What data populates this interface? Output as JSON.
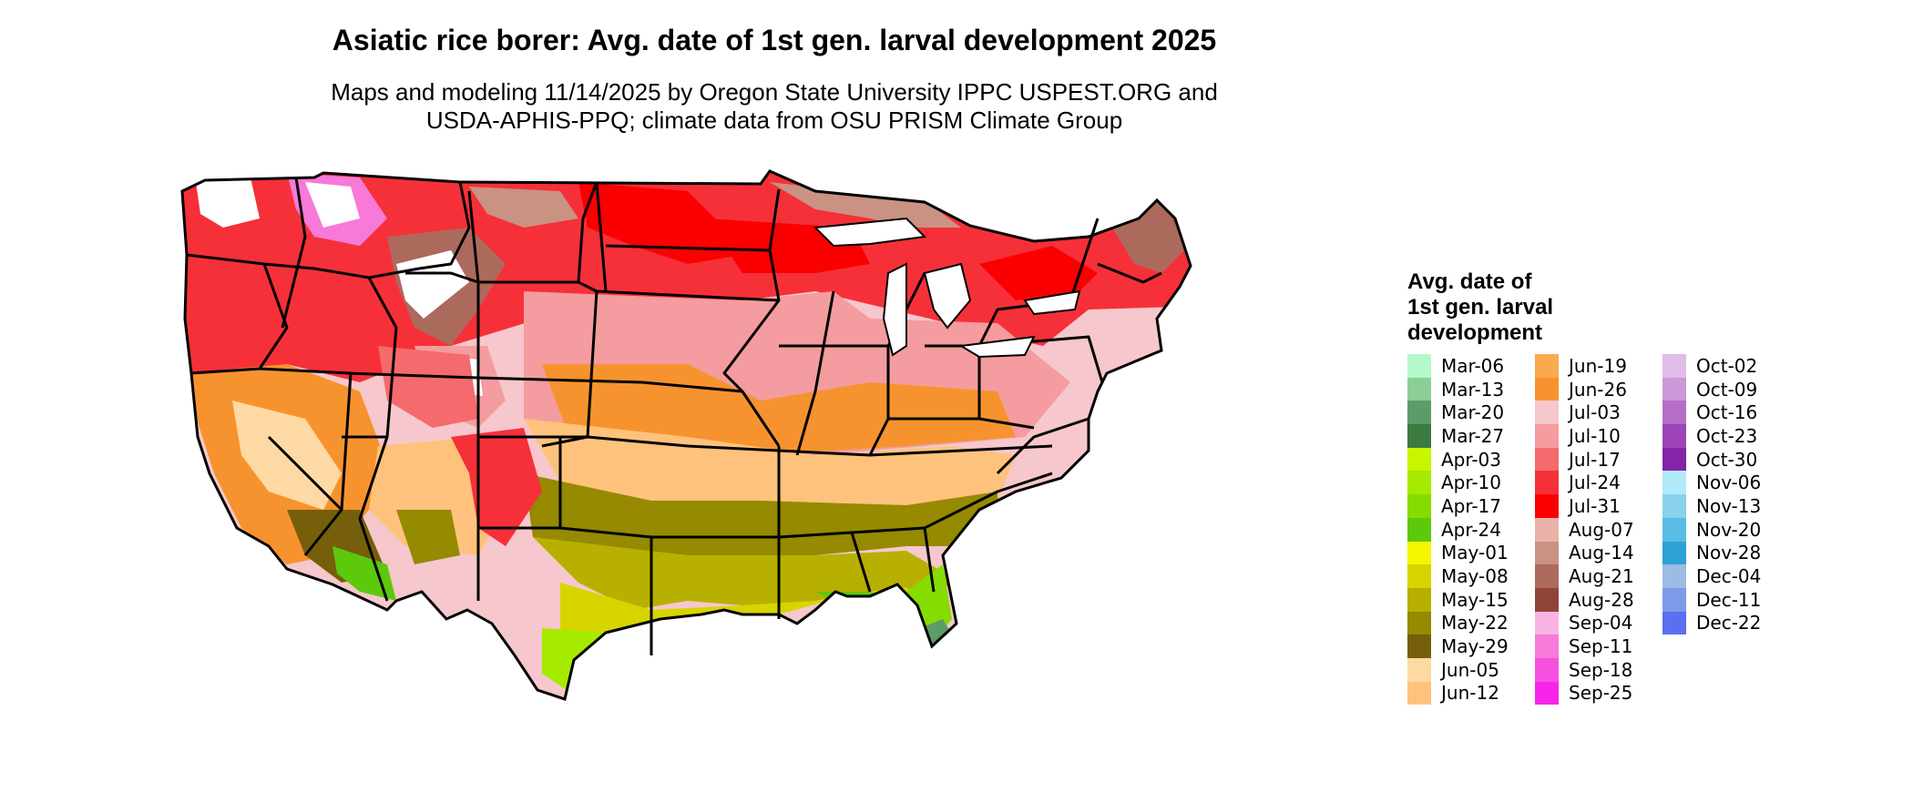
{
  "header": {
    "title": "Asiatic rice borer: Avg. date of 1st gen. larval development 2025",
    "subtitle_line1": "Maps and modeling 11/14/2025 by Oregon State University IPPC USPEST.ORG and",
    "subtitle_line2": "USDA-APHIS-PPQ; climate data from OSU PRISM Climate Group"
  },
  "legend": {
    "title_line1": "Avg. date of",
    "title_line2": "1st gen. larval",
    "title_line3": "development",
    "columns": [
      [
        {
          "label": "Mar-06",
          "color": "#b4f8c9"
        },
        {
          "label": "Mar-13",
          "color": "#8ccf96"
        },
        {
          "label": "Mar-20",
          "color": "#5c9c68"
        },
        {
          "label": "Mar-27",
          "color": "#3b7a41"
        },
        {
          "label": "Apr-03",
          "color": "#c8f500"
        },
        {
          "label": "Apr-10",
          "color": "#a6ea00"
        },
        {
          "label": "Apr-17",
          "color": "#86dc00"
        },
        {
          "label": "Apr-24",
          "color": "#5cc90c"
        },
        {
          "label": "May-01",
          "color": "#f5f500"
        },
        {
          "label": "May-08",
          "color": "#d8d400"
        },
        {
          "label": "May-15",
          "color": "#b8b000"
        },
        {
          "label": "May-22",
          "color": "#958a00"
        },
        {
          "label": "May-29",
          "color": "#755f0a"
        },
        {
          "label": "Jun-05",
          "color": "#ffd9a3"
        },
        {
          "label": "Jun-12",
          "color": "#ffc27c"
        }
      ],
      [
        {
          "label": "Jun-19",
          "color": "#fba94e"
        },
        {
          "label": "Jun-26",
          "color": "#f7932e"
        },
        {
          "label": "Jul-03",
          "color": "#f6c7cc"
        },
        {
          "label": "Jul-10",
          "color": "#f49c9f"
        },
        {
          "label": "Jul-17",
          "color": "#f56a6c"
        },
        {
          "label": "Jul-24",
          "color": "#f63038"
        },
        {
          "label": "Jul-31",
          "color": "#fa0000"
        },
        {
          "label": "Aug-07",
          "color": "#e8b3a8"
        },
        {
          "label": "Aug-14",
          "color": "#c99282"
        },
        {
          "label": "Aug-21",
          "color": "#ac6a5c"
        },
        {
          "label": "Aug-28",
          "color": "#904438"
        },
        {
          "label": "Sep-04",
          "color": "#f7b4e0"
        },
        {
          "label": "Sep-11",
          "color": "#f77ad8"
        },
        {
          "label": "Sep-18",
          "color": "#f850e0"
        },
        {
          "label": "Sep-25",
          "color": "#f824ec"
        }
      ],
      [
        {
          "label": "Oct-02",
          "color": "#e0bce8"
        },
        {
          "label": "Oct-09",
          "color": "#cc98d8"
        },
        {
          "label": "Oct-16",
          "color": "#b46ec8"
        },
        {
          "label": "Oct-23",
          "color": "#9c44b8"
        },
        {
          "label": "Oct-30",
          "color": "#8424a8"
        },
        {
          "label": "Nov-06",
          "color": "#b0eaf8"
        },
        {
          "label": "Nov-13",
          "color": "#88d2ee"
        },
        {
          "label": "Nov-20",
          "color": "#58bce4"
        },
        {
          "label": "Nov-28",
          "color": "#2ea2d6"
        },
        {
          "label": "Dec-04",
          "color": "#9cbce4"
        },
        {
          "label": "Dec-11",
          "color": "#7c9ae8"
        },
        {
          "label": "Dec-22",
          "color": "#5a70f0"
        }
      ]
    ]
  }
}
